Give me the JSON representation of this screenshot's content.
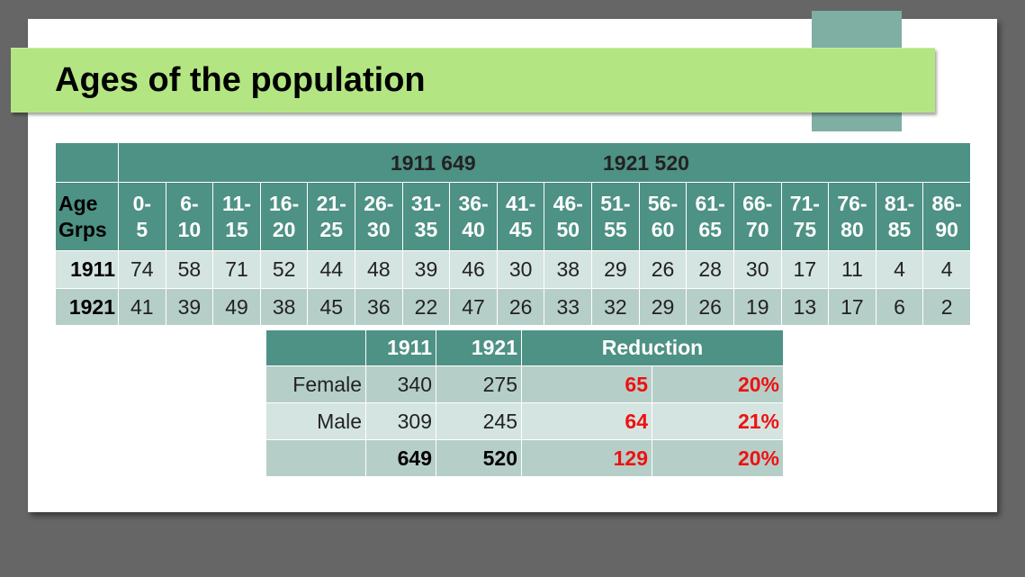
{
  "title": "Ages of the population",
  "main_table": {
    "top_labels": [
      "1911 649",
      "1921 520"
    ],
    "header_label": [
      "Age",
      "Grps"
    ],
    "age_groups": [
      [
        "0-",
        "5"
      ],
      [
        "6-",
        "10"
      ],
      [
        "11-",
        "15"
      ],
      [
        "16-",
        "20"
      ],
      [
        "21-",
        "25"
      ],
      [
        "26-",
        "30"
      ],
      [
        "31-",
        "35"
      ],
      [
        "36-",
        "40"
      ],
      [
        "41-",
        "45"
      ],
      [
        "46-",
        "50"
      ],
      [
        "51-",
        "55"
      ],
      [
        "56-",
        "60"
      ],
      [
        "61-",
        "65"
      ],
      [
        "66-",
        "70"
      ],
      [
        "71-",
        "75"
      ],
      [
        "76-",
        "80"
      ],
      [
        "81-",
        "85"
      ],
      [
        "86-",
        "90"
      ]
    ],
    "rows": [
      {
        "label": "1911",
        "values": [
          "74",
          "58",
          "71",
          "52",
          "44",
          "48",
          "39",
          "46",
          "30",
          "38",
          "29",
          "26",
          "28",
          "30",
          "17",
          "11",
          "4",
          "4"
        ],
        "highlight": []
      },
      {
        "label": "1921",
        "values": [
          "41",
          "39",
          "49",
          "38",
          "45",
          "36",
          "22",
          "47",
          "26",
          "33",
          "32",
          "29",
          "26",
          "19",
          "13",
          "17",
          "6",
          "2"
        ],
        "highlight": [
          0,
          1,
          2,
          3,
          5,
          6,
          13
        ]
      }
    ],
    "highlight_color": "#f05a2a"
  },
  "summary_table": {
    "headers": [
      "",
      "1911",
      "1921",
      "Reduction"
    ],
    "rows": [
      {
        "label": "Female",
        "v1911": "340",
        "v1921": "275",
        "reduction": "65",
        "pct": "20%"
      },
      {
        "label": "Male",
        "v1911": "309",
        "v1921": "245",
        "reduction": "64",
        "pct": "21%"
      },
      {
        "label": "",
        "v1911": "649",
        "v1921": "520",
        "reduction": "129",
        "pct": "20%"
      }
    ],
    "reduction_color": "#ee1111"
  },
  "colors": {
    "header_teal": "#4e9185",
    "title_green": "#b3e682",
    "accent_block": "#7faea3",
    "row_light": "#d4e4e0",
    "row_dark": "#b6cec8"
  }
}
